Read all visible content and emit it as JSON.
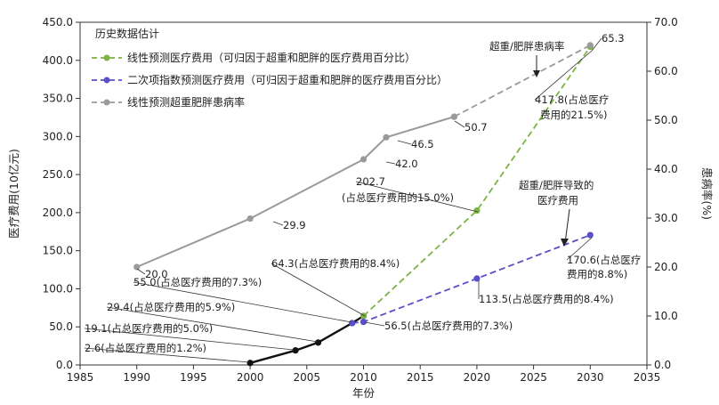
{
  "chart_data": {
    "type": "line",
    "title": "",
    "xlabel": "年份",
    "ylabel": "医疗费用(10亿元)",
    "y2label": "患病率(%)",
    "xlim": [
      1985,
      2035
    ],
    "ylim": [
      0,
      450
    ],
    "y2lim": [
      0,
      70
    ],
    "xticks": [
      "1985",
      "1990",
      "1995",
      "2000",
      "2005",
      "2010",
      "2015",
      "2020",
      "2025",
      "2030",
      "2035"
    ],
    "yticks": [
      "0.0",
      "50.0",
      "100.0",
      "150.0",
      "200.0",
      "250.0",
      "300.0",
      "350.0",
      "400.0",
      "450.0"
    ],
    "y2ticks": [
      "0.0",
      "10.0",
      "20.0",
      "30.0",
      "40.0",
      "50.0",
      "60.0",
      "70.0"
    ],
    "legend_title": "历史数据估计",
    "legend_position": "top-left",
    "grid": false,
    "series": [
      {
        "name": "",
        "axis": "left",
        "style": "solid",
        "color": "#111111",
        "points": [
          {
            "x": 2000,
            "y": 2.6
          },
          {
            "x": 2004,
            "y": 19.1
          },
          {
            "x": 2006,
            "y": 29.4
          },
          {
            "x": 2009,
            "y": 55.0
          },
          {
            "x": 2010,
            "y": 64.3
          }
        ]
      },
      {
        "name": "线性预测医疗费用（可归因于超重和肥胖的医疗费用百分比）",
        "axis": "left",
        "style": "dashed",
        "color": "#7cb342",
        "points": [
          {
            "x": 2010,
            "y": 64.3
          },
          {
            "x": 2020,
            "y": 202.7
          },
          {
            "x": 2030,
            "y": 417.8
          }
        ]
      },
      {
        "name": "二次项指数预测医疗费用（可归因于超重和肥胖的医疗费用百分比）",
        "axis": "left",
        "style": "dashed",
        "color": "#5a4fc8",
        "points": [
          {
            "x": 2009,
            "y": 55.0
          },
          {
            "x": 2010,
            "y": 56.5
          },
          {
            "x": 2020,
            "y": 113.5
          },
          {
            "x": 2030,
            "y": 170.6
          }
        ]
      },
      {
        "name": "",
        "axis": "right",
        "style": "solid",
        "color": "#9a9a9a",
        "points": [
          {
            "x": 1990,
            "y": 20.0
          },
          {
            "x": 2000,
            "y": 29.9
          },
          {
            "x": 2010,
            "y": 42.0
          },
          {
            "x": 2012,
            "y": 46.5
          },
          {
            "x": 2018,
            "y": 50.7
          }
        ]
      },
      {
        "name": "线性预测超重肥胖患病率",
        "axis": "right",
        "style": "dashed",
        "color": "#9a9a9a",
        "points": [
          {
            "x": 2018,
            "y": 50.7
          },
          {
            "x": 2030,
            "y": 65.3
          }
        ]
      }
    ],
    "data_labels": [
      {
        "text": "2.6(占总医疗费用的1.2%)"
      },
      {
        "text": "19.1(占总医疗费用的5.0%)"
      },
      {
        "text": "29.4(占总医疗费用的5.9%)"
      },
      {
        "text": "55.0(占总医疗费用的7.3%)"
      },
      {
        "text": "64.3(占总医疗费用的8.4%)"
      },
      {
        "text": "56.5(占总医疗费用的7.3%)"
      },
      {
        "text": "113.5(占总医疗费用的8.4%)"
      },
      {
        "text": "170.6(占总医疗"
      },
      {
        "text": "费用的8.8%)"
      },
      {
        "text": "202.7"
      },
      {
        "text": "(占总医疗费用的15.0%)"
      },
      {
        "text": "417.8(占总医疗"
      },
      {
        "text": "费用的21.5%)"
      },
      {
        "text": "20.0"
      },
      {
        "text": "29.9"
      },
      {
        "text": "42.0"
      },
      {
        "text": "46.5"
      },
      {
        "text": "50.7"
      },
      {
        "text": "65.3"
      }
    ],
    "annotations": [
      {
        "text": "超重/肥胖患病率"
      },
      {
        "text": "超重/肥胖导致的"
      },
      {
        "text": "医疗费用"
      }
    ]
  }
}
